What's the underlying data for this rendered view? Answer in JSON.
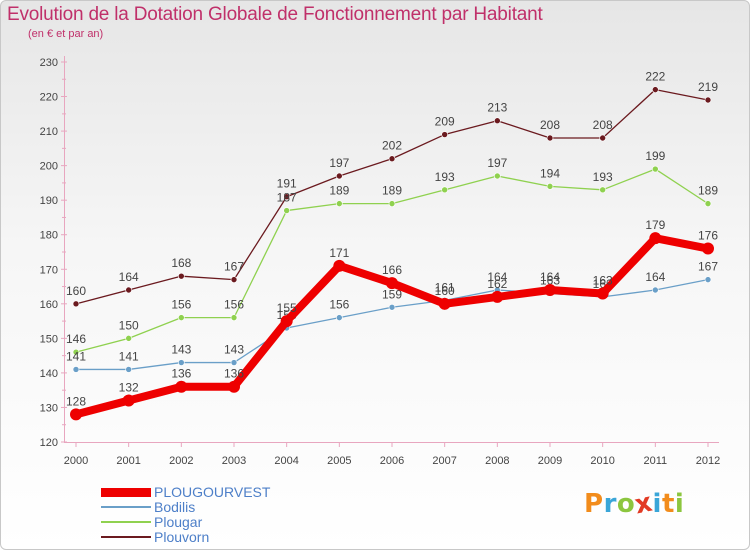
{
  "header": {
    "title": "Evolution de la Dotation Globale de Fonctionnement par Habitant",
    "subtitle": "(en € et par an)"
  },
  "branding": {
    "logo_text": "Proxiti",
    "logo_letters": [
      "P",
      "r",
      "o",
      "x",
      "i",
      "t",
      "i"
    ],
    "logo_colors": [
      "#f28c1c",
      "#3aa6d8",
      "#8cc63f",
      "#e23a24",
      "#3aa6d8",
      "#f28c1c",
      "#8cc63f"
    ]
  },
  "chart_data": {
    "type": "line",
    "title": "Evolution de la Dotation Globale de Fonctionnement par Habitant",
    "subtitle": "(en € et par an)",
    "xlabel": "",
    "ylabel": "",
    "x": [
      "2000",
      "2001",
      "2002",
      "2003",
      "2004",
      "2005",
      "2006",
      "2007",
      "2008",
      "2009",
      "2010",
      "2011",
      "2012"
    ],
    "ylim": [
      120,
      230
    ],
    "yticks": [
      120,
      130,
      140,
      150,
      160,
      170,
      180,
      190,
      200,
      210,
      220,
      230
    ],
    "grid": false,
    "legend_position": "bottom-left",
    "series": [
      {
        "name": "Plouvorn",
        "color": "#6b1a1f",
        "values": [
          160,
          164,
          168,
          167,
          191,
          197,
          202,
          209,
          213,
          208,
          208,
          222,
          219
        ],
        "labels": [
          "160",
          "164",
          "168",
          "167",
          "191",
          "197",
          "202",
          "209",
          "213",
          "208",
          "208",
          "222",
          "219"
        ]
      },
      {
        "name": "Plougar",
        "color": "#8fd14f",
        "values": [
          146,
          150,
          156,
          156,
          187,
          189,
          189,
          193,
          197,
          194,
          193,
          199,
          189
        ],
        "labels": [
          "146",
          "150",
          "156",
          "156",
          "187",
          "189",
          "189",
          "193",
          "197",
          "194",
          "193",
          "199",
          "189"
        ]
      },
      {
        "name": "Bodilis",
        "color": "#6a9fc8",
        "values": [
          141,
          141,
          143,
          143,
          153,
          156,
          159,
          161,
          164,
          163,
          162,
          164,
          167
        ],
        "labels": [
          "141",
          "141",
          "143",
          "143",
          "153",
          "156",
          "159",
          "161",
          "164",
          "163",
          "162",
          "164",
          "167"
        ]
      },
      {
        "name": "PLOUGOURVEST",
        "color": "#ee0000",
        "values": [
          128,
          132,
          136,
          136,
          155,
          171,
          166,
          160,
          162,
          164,
          163,
          179,
          176
        ],
        "labels": [
          "128",
          "132",
          "136",
          "136",
          "155",
          "171",
          "166",
          "160",
          "162",
          "164",
          "163",
          "179",
          "176"
        ]
      }
    ],
    "legend": [
      "PLOUGOURVEST",
      "Bodilis",
      "Plougar",
      "Plouvorn"
    ]
  }
}
